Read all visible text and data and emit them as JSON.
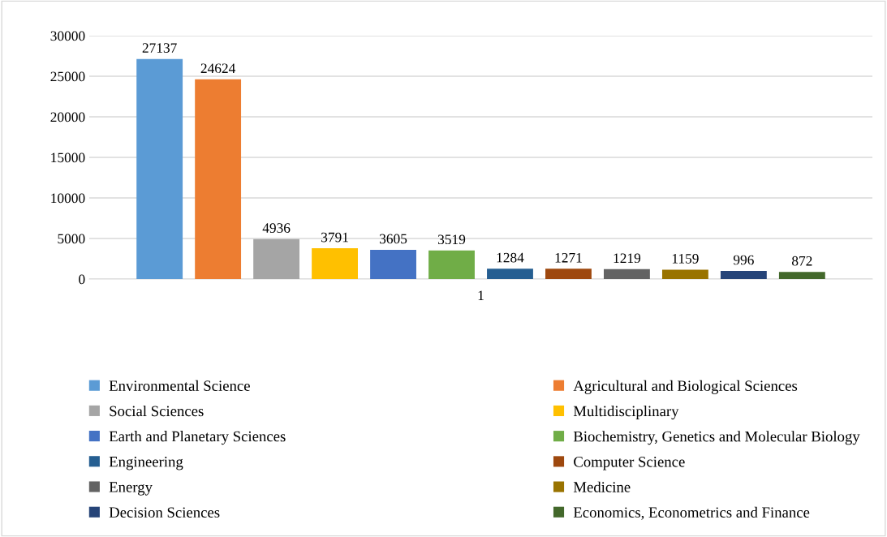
{
  "chart_data": {
    "type": "bar",
    "categories": [
      "1"
    ],
    "series": [
      {
        "name": "Environmental Science",
        "color": "#5b9bd5",
        "values": [
          27137
        ]
      },
      {
        "name": "Agricultural and Biological Sciences",
        "color": "#ed7d31",
        "values": [
          24624
        ]
      },
      {
        "name": "Social Sciences",
        "color": "#a5a5a5",
        "values": [
          4936
        ]
      },
      {
        "name": "Multidisciplinary",
        "color": "#ffc000",
        "values": [
          3791
        ]
      },
      {
        "name": "Earth and Planetary Sciences",
        "color": "#4472c4",
        "values": [
          3605
        ]
      },
      {
        "name": "Biochemistry, Genetics and Molecular Biology",
        "color": "#70ad47",
        "values": [
          3519
        ]
      },
      {
        "name": "Engineering",
        "color": "#255e91",
        "values": [
          1284
        ]
      },
      {
        "name": "Computer Science",
        "color": "#9e480e",
        "values": [
          1271
        ]
      },
      {
        "name": "Energy",
        "color": "#636363",
        "values": [
          1219
        ]
      },
      {
        "name": "Medicine",
        "color": "#997300",
        "values": [
          1159
        ]
      },
      {
        "name": "Decision Sciences",
        "color": "#264478",
        "values": [
          996
        ]
      },
      {
        "name": "Economics, Econometrics and Finance",
        "color": "#43682b",
        "values": [
          872
        ]
      }
    ],
    "ylim": [
      0,
      30000
    ],
    "yticks": [
      0,
      5000,
      10000,
      15000,
      20000,
      25000,
      30000
    ],
    "grid": "y",
    "legend": "bottom",
    "data_labels": true
  }
}
